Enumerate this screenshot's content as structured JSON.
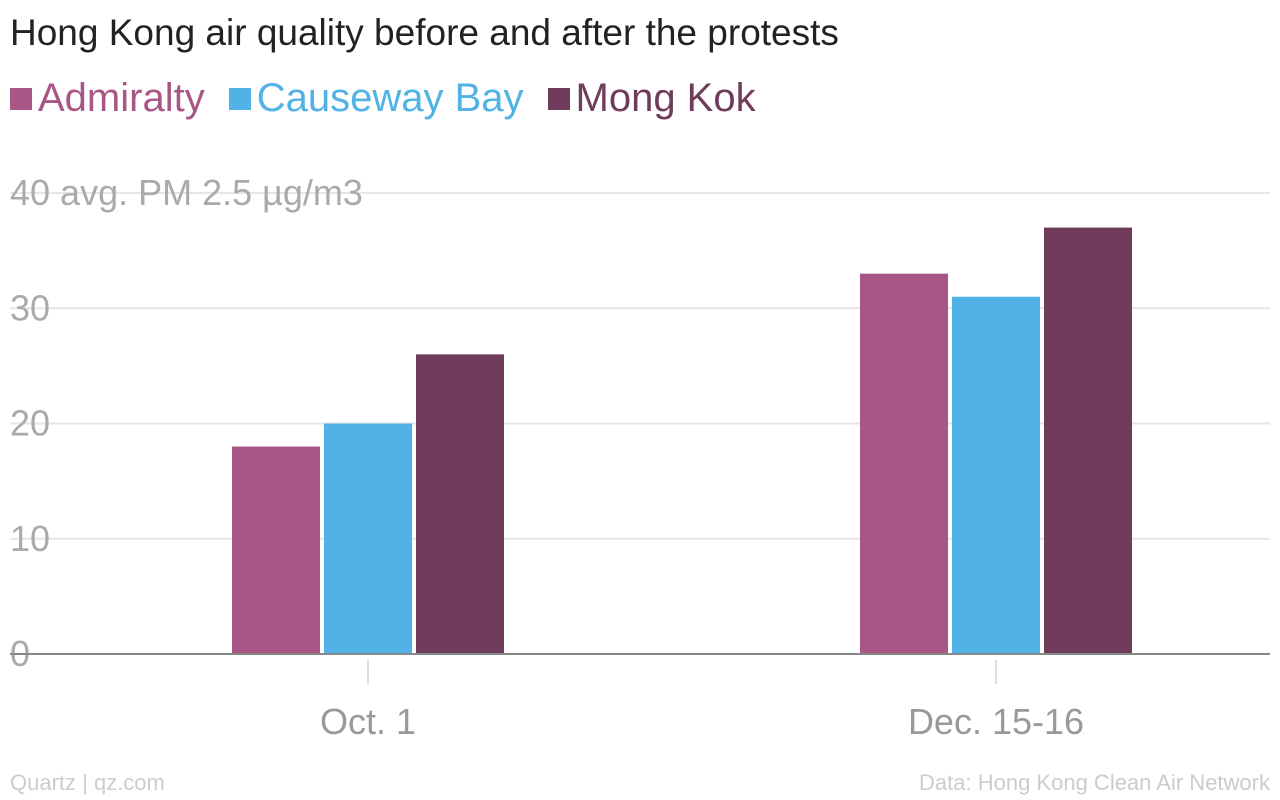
{
  "chart_data": {
    "type": "bar",
    "title": "Hong Kong air quality before and after the protests",
    "ylabel": "avg. PM 2.5 µg/m3",
    "categories": [
      "Oct. 1",
      "Dec. 15-16"
    ],
    "series": [
      {
        "name": "Admiralty",
        "color": "#a85685",
        "values": [
          18,
          33
        ]
      },
      {
        "name": "Causeway Bay",
        "color": "#51b2e5",
        "values": [
          20,
          31
        ]
      },
      {
        "name": "Mong Kok",
        "color": "#703c5c",
        "values": [
          26,
          37
        ]
      }
    ],
    "ylim": [
      0,
      40
    ],
    "yticks": [
      0,
      10,
      20,
      30,
      40
    ],
    "grid": true,
    "legend": "top-left"
  },
  "footer": {
    "source_left": "Quartz | qz.com",
    "source_right": "Data: Hong Kong Clean Air Network"
  }
}
